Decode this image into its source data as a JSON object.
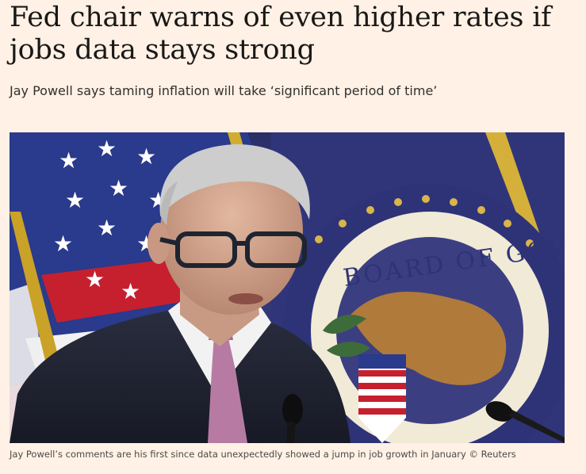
{
  "article": {
    "headline": "Fed chair warns of even higher rates if jobs data stays strong",
    "standfirst": "Jay Powell says taming inflation will take ‘significant period of time’",
    "image": {
      "seal_text": "BOARD OF GOVERNORS",
      "caption": "Jay Powell’s comments are his first since data unexpectedly showed a jump in job growth in January © Reuters"
    }
  },
  "colors": {
    "page_background": "#fff1e5",
    "headline": "#1a1817",
    "standfirst": "#33302e",
    "caption": "#4d4845"
  }
}
